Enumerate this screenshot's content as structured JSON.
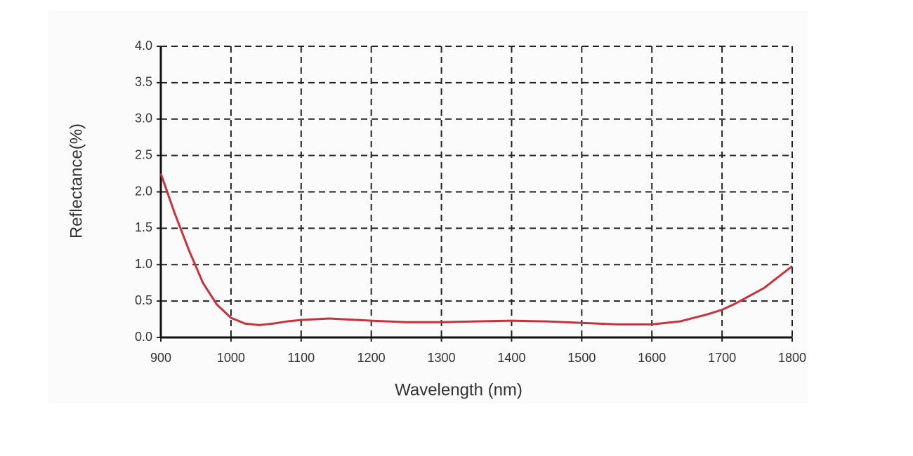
{
  "chart_data": {
    "type": "line",
    "x_label": "Wavelength (nm)",
    "y_label": "Reflectance(%)",
    "x": [
      900,
      920,
      940,
      960,
      980,
      1000,
      1020,
      1040,
      1060,
      1080,
      1100,
      1140,
      1200,
      1250,
      1300,
      1350,
      1400,
      1450,
      1500,
      1550,
      1600,
      1640,
      1680,
      1700,
      1720,
      1760,
      1800
    ],
    "series": [
      {
        "color": "#c8323c",
        "values": [
          2.25,
          1.7,
          1.2,
          0.75,
          0.45,
          0.27,
          0.19,
          0.17,
          0.19,
          0.22,
          0.24,
          0.26,
          0.23,
          0.21,
          0.21,
          0.22,
          0.23,
          0.22,
          0.2,
          0.18,
          0.18,
          0.22,
          0.32,
          0.38,
          0.47,
          0.68,
          0.98
        ]
      }
    ],
    "xlim": [
      900,
      1800
    ],
    "xticks": [
      900,
      1000,
      1100,
      1200,
      1300,
      1400,
      1500,
      1600,
      1700,
      1800
    ],
    "ylim": [
      0,
      4
    ],
    "yticks": [
      {
        "value": 0,
        "label": "0.0"
      },
      0.5,
      {
        "value": 1,
        "label": "1.0"
      },
      1.5,
      {
        "value": 2,
        "label": "2.0"
      },
      2.5,
      {
        "value": 3,
        "label": "3.0"
      },
      3.5,
      {
        "value": 4,
        "label": "4.0"
      }
    ],
    "grid": true
  }
}
